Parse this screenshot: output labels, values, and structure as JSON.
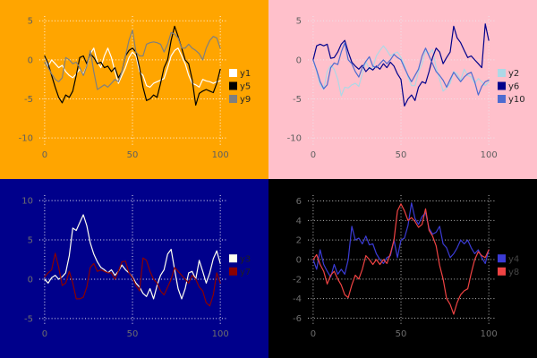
{
  "figure": {
    "title": "",
    "layout": "2x2-subplots",
    "x_axis_ticks_shared": [
      0,
      50,
      100
    ]
  },
  "chart_data": [
    {
      "position": "top-left",
      "type": "line",
      "title": "",
      "xlabel": "",
      "ylabel": "",
      "background": "#ffa500",
      "grid": true,
      "grid_color": "#ffffff",
      "tick_color": "#5f5f5f",
      "legend_text_color": "#262626",
      "legend_position": "right-center",
      "x_ticks": [
        0,
        50,
        100
      ],
      "y_ticks": [
        5,
        0,
        -5,
        -10
      ],
      "xlim": [
        -3,
        104
      ],
      "ylim": [
        -10.9,
        5.6
      ],
      "x": [
        0,
        2,
        4,
        6,
        8,
        10,
        12,
        14,
        16,
        18,
        20,
        22,
        24,
        26,
        28,
        30,
        32,
        34,
        36,
        38,
        40,
        42,
        44,
        46,
        48,
        50,
        52,
        54,
        56,
        58,
        60,
        62,
        64,
        66,
        68,
        70,
        72,
        74,
        76,
        78,
        80,
        82,
        84,
        86,
        88,
        90,
        92,
        94,
        96,
        98,
        100
      ],
      "series": [
        {
          "name": "y1",
          "color": "#ffffff",
          "values": [
            0.5,
            -0.8,
            0,
            -0.5,
            -1,
            -0.7,
            -1.5,
            -2,
            -2.3,
            -1.8,
            -1.2,
            -1.8,
            -0.8,
            0.8,
            1.5,
            -0.3,
            -1,
            0.5,
            1.5,
            0.3,
            -1.5,
            -3,
            -2,
            -1,
            0.3,
            1,
            0.5,
            -1.5,
            -2,
            -3.3,
            -3.5,
            -3,
            -2.8,
            -2.6,
            -2.4,
            -1,
            0.5,
            1.2,
            1.5,
            0.5,
            -0.5,
            -2,
            -3,
            -3.2,
            -3.5,
            -2.5,
            -2.7,
            -2.8,
            -3,
            -2.8,
            -2.7
          ]
        },
        {
          "name": "y5",
          "color": "#000000",
          "values": [
            0.5,
            -0.5,
            -2,
            -3.5,
            -4.8,
            -5.5,
            -4.5,
            -4.8,
            -4,
            -2,
            0.3,
            0.5,
            -0.5,
            0.8,
            0.3,
            -0.5,
            -0.3,
            -1,
            -0.8,
            -1.5,
            -1,
            -2.3,
            -1.5,
            0.5,
            1.2,
            1.5,
            1,
            -1,
            -3.5,
            -5.2,
            -5,
            -4.5,
            -4.8,
            -3,
            -1,
            0,
            2.5,
            4.3,
            3,
            1.5,
            0,
            -0.5,
            -2.5,
            -5.8,
            -4.3,
            -4,
            -3.8,
            -4,
            -4.2,
            -3,
            -1.2
          ]
        },
        {
          "name": "y9",
          "color": "#7f7f7f",
          "values": [
            -0.3,
            -1,
            -1.8,
            -2.5,
            -2.8,
            -2.3,
            0.3,
            0,
            -0.5,
            -0.3,
            -1,
            -2,
            -0.8,
            1.2,
            -1.5,
            -3.8,
            -3.5,
            -3.2,
            -3.5,
            -3,
            -2.5,
            -2.8,
            -1.5,
            0.5,
            2.5,
            3.8,
            1,
            0.5,
            0.5,
            2,
            2.2,
            2.3,
            2.2,
            2,
            1,
            2,
            3.5,
            3.3,
            2.8,
            1.5,
            1.5,
            2,
            1.5,
            1.2,
            0.8,
            0,
            1.5,
            2.5,
            3,
            2.8,
            1.5
          ]
        }
      ]
    },
    {
      "position": "top-right",
      "type": "line",
      "title": "",
      "xlabel": "",
      "ylabel": "",
      "background": "#ffc0cb",
      "grid": true,
      "grid_color": "#eae8ef",
      "tick_color": "#5f5f5f",
      "legend_text_color": "#262626",
      "legend_position": "right-center",
      "x_ticks": [
        0,
        50,
        100
      ],
      "y_ticks": [
        5,
        0,
        -5,
        -10
      ],
      "xlim": [
        -3,
        104
      ],
      "ylim": [
        -10.9,
        5.6
      ],
      "x": [
        0,
        2,
        4,
        6,
        8,
        10,
        12,
        14,
        16,
        18,
        20,
        22,
        24,
        26,
        28,
        30,
        32,
        34,
        36,
        38,
        40,
        42,
        44,
        46,
        48,
        50,
        52,
        54,
        56,
        58,
        60,
        62,
        64,
        66,
        68,
        70,
        72,
        74,
        76,
        78,
        80,
        82,
        84,
        86,
        88,
        90,
        92,
        94,
        96,
        98,
        100
      ],
      "series": [
        {
          "name": "y2",
          "color": "#add8e6",
          "values": [
            0,
            -1.5,
            -3.2,
            -3.8,
            -1.5,
            -0.7,
            -1.2,
            -2.5,
            -4.6,
            -3.5,
            -3.6,
            -3.2,
            -3,
            -3.4,
            -1.8,
            -0.2,
            -1.2,
            -1,
            0.5,
            1.2,
            1.8,
            1.2,
            0.5,
            0.8,
            1,
            0.3,
            -0.7,
            -2.2,
            -3.3,
            -3.3,
            -1.5,
            -0.5,
            1.2,
            0.8,
            1.3,
            -1,
            -2.5,
            -4,
            -3.6,
            -3,
            -1.5,
            -1.8,
            -2.6,
            -1.2,
            -2,
            -2.2,
            -3,
            -2.4,
            -2.8,
            -3.3,
            -2.8
          ]
        },
        {
          "name": "y6",
          "color": "#00008b",
          "values": [
            0,
            1.8,
            2,
            1.8,
            2,
            0.2,
            0.3,
            1,
            2,
            2.5,
            1,
            -0.3,
            -0.8,
            -1.2,
            -0.7,
            -1.5,
            -1,
            -1.3,
            -0.8,
            -1.2,
            -0.5,
            -1,
            -0.3,
            -0.8,
            -1.8,
            -2.5,
            -5.9,
            -5,
            -4.5,
            -5.2,
            -3.5,
            -2.8,
            -3,
            -1.5,
            0.3,
            1.5,
            1,
            -0.5,
            0.3,
            1,
            4.3,
            2.8,
            2.2,
            1.2,
            0.3,
            0.5,
            0,
            -0.5,
            -1,
            4.6,
            2.5
          ]
        },
        {
          "name": "y10",
          "color": "#4e6bd0",
          "values": [
            0,
            -1.3,
            -2.8,
            -3.7,
            -3.2,
            -1,
            -0.4,
            -0.6,
            1,
            2.2,
            0,
            -0.5,
            -1.5,
            -2.2,
            -1,
            -0.2,
            0.4,
            -0.8,
            -1,
            -0.5,
            0,
            -0.5,
            0,
            0.7,
            0.3,
            0,
            -1,
            -2,
            -2.8,
            -2,
            -1.2,
            0.5,
            1.5,
            0.5,
            -0.5,
            -1.5,
            -2,
            -2.6,
            -3.5,
            -2.5,
            -1.6,
            -2.2,
            -2.8,
            -2.2,
            -1.8,
            -1.6,
            -2.8,
            -4.5,
            -3.4,
            -2.8,
            -2.6
          ]
        }
      ]
    },
    {
      "position": "bottom-left",
      "type": "line",
      "title": "",
      "xlabel": "",
      "ylabel": "",
      "background": "#00008b",
      "grid": true,
      "grid_color": "#ffffff",
      "tick_color": "#6e6e6e",
      "legend_text_color": "#1f1f1f",
      "legend_position": "right-center",
      "x_ticks": [
        0,
        50,
        100
      ],
      "y_ticks": [
        10,
        5,
        0,
        -5
      ],
      "xlim": [
        -3,
        104
      ],
      "ylim": [
        -5.7,
        10.7
      ],
      "x": [
        0,
        2,
        4,
        6,
        8,
        10,
        12,
        14,
        16,
        18,
        20,
        22,
        24,
        26,
        28,
        30,
        32,
        34,
        36,
        38,
        40,
        42,
        44,
        46,
        48,
        50,
        52,
        54,
        56,
        58,
        60,
        62,
        64,
        66,
        68,
        70,
        72,
        74,
        76,
        78,
        80,
        82,
        84,
        86,
        88,
        90,
        92,
        94,
        96,
        98,
        100
      ],
      "series": [
        {
          "name": "y3",
          "color": "#fffff0",
          "values": [
            0,
            -0.5,
            0.2,
            0.5,
            0,
            0.3,
            0.8,
            3,
            6.5,
            6.2,
            7.2,
            8.2,
            6.8,
            4.6,
            3.2,
            2.2,
            1.5,
            1.2,
            0.8,
            1.2,
            0.5,
            1,
            1.8,
            1.2,
            0.8,
            0.3,
            -0.5,
            -1,
            -1.8,
            -2.2,
            -1.2,
            -2.5,
            -0.8,
            0.5,
            1.2,
            3.2,
            3.8,
            1.2,
            -1.2,
            -2.5,
            -1.2,
            0.8,
            1,
            0,
            2.4,
            1,
            -0.5,
            0.8,
            2.6,
            3.6,
            2
          ]
        },
        {
          "name": "y7",
          "color": "#8b0000",
          "values": [
            0.3,
            0.8,
            1.2,
            3.3,
            1.5,
            -0.8,
            -0.5,
            1,
            -0.5,
            -2.5,
            -2.5,
            -2.3,
            -1,
            1.5,
            2,
            1,
            1.2,
            1,
            0.8,
            0.8,
            0,
            1,
            2.2,
            2.3,
            0.8,
            0.2,
            -0.8,
            -1.5,
            2.7,
            2.4,
            1,
            0,
            -0.5,
            -1.5,
            -2,
            -1,
            0,
            1.5,
            1,
            0.5,
            0,
            -0.5,
            0.5,
            0,
            -1,
            -1.5,
            -3,
            -3.4,
            -2,
            0.8,
            -0.5
          ]
        }
      ]
    },
    {
      "position": "bottom-right",
      "type": "line",
      "title": "",
      "xlabel": "",
      "ylabel": "",
      "background": "#000000",
      "grid": true,
      "grid_color": "#cfcfcf",
      "tick_color": "#6e6e6e",
      "legend_text_color": "#454545",
      "legend_position": "right-center",
      "x_ticks": [
        0,
        50,
        100
      ],
      "y_ticks": [
        6,
        4,
        2,
        0,
        -2,
        -4,
        -6
      ],
      "xlim": [
        -3,
        104
      ],
      "ylim": [
        -6.6,
        6.6
      ],
      "x": [
        0,
        2,
        4,
        6,
        8,
        10,
        12,
        14,
        16,
        18,
        20,
        22,
        24,
        26,
        28,
        30,
        32,
        34,
        36,
        38,
        40,
        42,
        44,
        46,
        48,
        50,
        52,
        54,
        56,
        58,
        60,
        62,
        64,
        66,
        68,
        70,
        72,
        74,
        76,
        78,
        80,
        82,
        84,
        86,
        88,
        90,
        92,
        94,
        96,
        98,
        100
      ],
      "series": [
        {
          "name": "y4",
          "color": "#3b3bd6",
          "values": [
            0,
            -1,
            1,
            -0.5,
            -1.2,
            -1.8,
            -0.5,
            -1.5,
            -1,
            -1.5,
            0,
            3.4,
            2,
            2.2,
            1.6,
            2.4,
            1.5,
            1.6,
            0.6,
            0,
            -0.4,
            0.2,
            0.4,
            2,
            0.2,
            2,
            2.2,
            3.5,
            5.8,
            4.2,
            3.6,
            4.4,
            4.8,
            3.2,
            2.6,
            2.8,
            3.4,
            1.6,
            1.2,
            0.2,
            0.6,
            1.2,
            2,
            1.6,
            2,
            1.2,
            0.6,
            1,
            0.2,
            -0.4,
            1
          ]
        },
        {
          "name": "y8",
          "color": "#f04343",
          "values": [
            0,
            0.5,
            -0.5,
            -1.2,
            -2.5,
            -1.6,
            -1.2,
            -2,
            -2.6,
            -3.6,
            -3.9,
            -2.6,
            -1.6,
            -2,
            -1,
            0.4,
            0,
            -0.5,
            0,
            -0.5,
            0,
            -0.4,
            0.6,
            2,
            5,
            5.7,
            5,
            4,
            4.3,
            3.9,
            3.3,
            3.6,
            5.2,
            3,
            2.4,
            1.4,
            -0.6,
            -2,
            -4,
            -4.6,
            -5.6,
            -4.4,
            -3.6,
            -3.2,
            -3,
            -1.4,
            0,
            0.8,
            0.4,
            0.2,
            1
          ]
        }
      ]
    }
  ]
}
